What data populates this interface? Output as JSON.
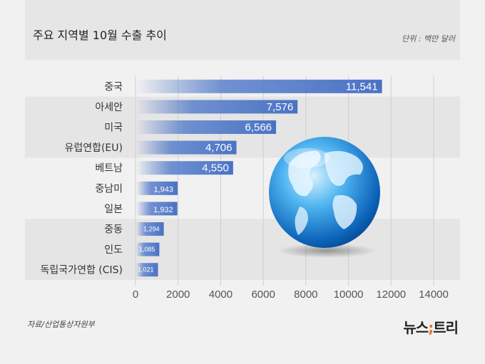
{
  "header": {
    "title": "주요 지역별 10월 수출 추이",
    "unit": "단위 : 백만 달러"
  },
  "footer": {
    "source": "자료/산업통상자원부",
    "logo": "뉴스;트리",
    "logo_parts": [
      "뉴스",
      ";",
      "트리"
    ]
  },
  "colors": {
    "bar": "#4a72c4",
    "band": "#e5e5e5",
    "accent": "#f07020"
  },
  "illustration": "globe-icon",
  "chart_data": {
    "type": "bar",
    "orientation": "horizontal",
    "categories": [
      "중국",
      "아세안",
      "미국",
      "유럽연합(EU)",
      "베트남",
      "중남미",
      "일본",
      "중동",
      "인도",
      "독립국가연합 (CIS)"
    ],
    "values": [
      11541,
      7576,
      6566,
      4706,
      4550,
      1943,
      1932,
      1294,
      1085,
      1021
    ],
    "data_labels": [
      "11,541",
      "7,576",
      "6,566",
      "4,706",
      "4,550",
      "1,943",
      "1,932",
      "1,294",
      "1,085",
      "1,021"
    ],
    "xlim": [
      0,
      14000
    ],
    "xticks": [
      0,
      2000,
      4000,
      6000,
      8000,
      10000,
      12000,
      14000
    ],
    "grid": true,
    "title": "주요 지역별 10월 수출 추이",
    "unit": "단위 : 백만 달러"
  }
}
